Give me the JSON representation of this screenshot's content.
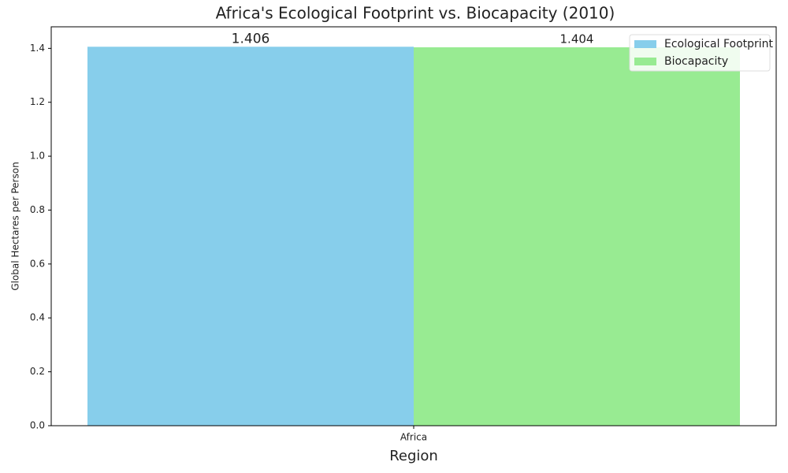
{
  "chart_data": {
    "type": "bar",
    "title": "Africa's Ecological Footprint vs. Biocapacity (2010)",
    "xlabel": "Region",
    "ylabel": "Global Hectares per Person",
    "categories": [
      "Africa"
    ],
    "series": [
      {
        "name": "Ecological Footprint",
        "color": "#87ceeb",
        "values": [
          1.406
        ]
      },
      {
        "name": "Biocapacity",
        "color": "#98eb92",
        "values": [
          1.404
        ]
      }
    ],
    "ylim": [
      0,
      1.48
    ],
    "yticks": [
      {
        "value": 0,
        "label": "0.0"
      },
      0.2,
      0.4,
      0.6,
      0.8,
      {
        "value": 1,
        "label": "1.0"
      },
      1.2,
      1.4
    ],
    "grid": false,
    "legend": "upper right"
  }
}
